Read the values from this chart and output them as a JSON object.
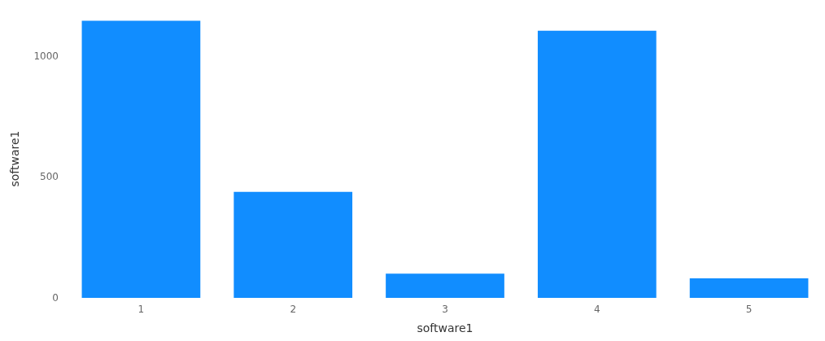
{
  "chart_data": {
    "type": "bar",
    "xlabel": "software1",
    "ylabel": "software1",
    "categories": [
      "1",
      "2",
      "3",
      "4",
      "5"
    ],
    "values": [
      1145,
      438,
      100,
      1104,
      81
    ],
    "color": "#118dff",
    "ylim": [
      0,
      1150
    ],
    "yticks": [
      0,
      500,
      1000
    ],
    "grid": false
  }
}
